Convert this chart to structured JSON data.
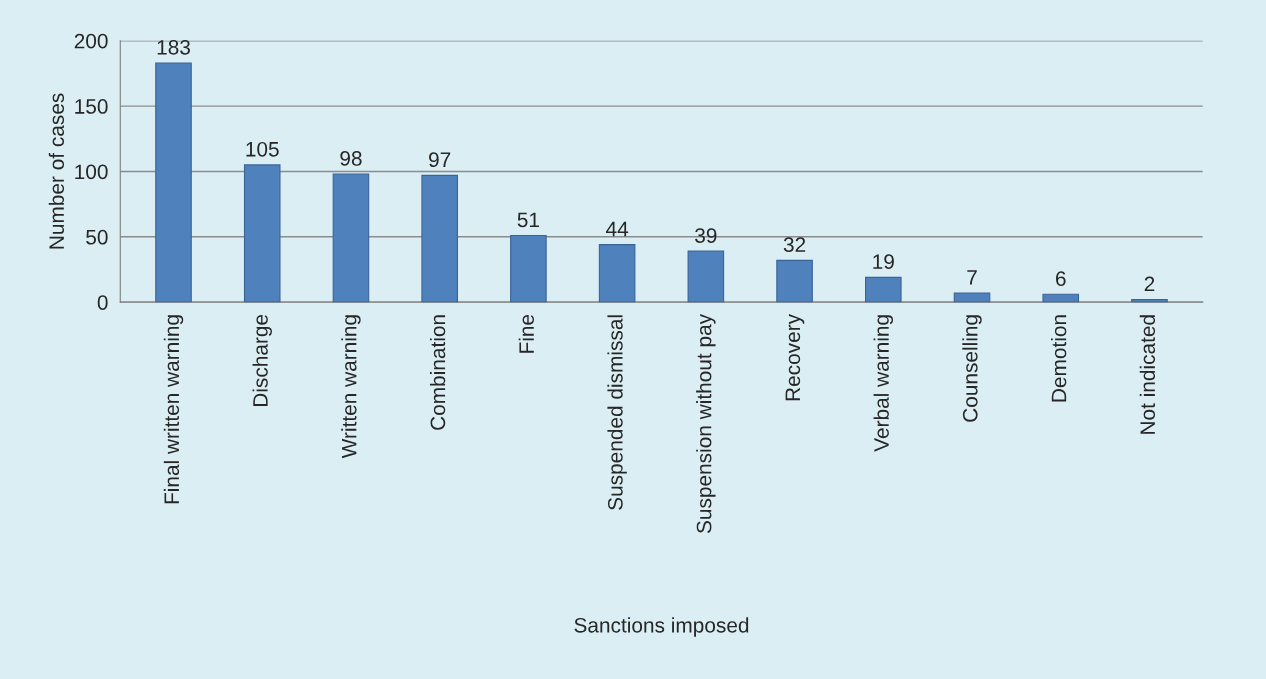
{
  "chart_data": {
    "type": "bar",
    "xlabel": "Sanctions imposed",
    "ylabel": "Number of cases",
    "categories": [
      "Final written warning",
      "Discharge",
      "Written warning",
      "Combination",
      "Fine",
      "Suspended dismissal",
      "Suspension without pay",
      "Recovery",
      "Verbal warning",
      "Counselling",
      "Demotion",
      "Not indicated"
    ],
    "values": [
      183,
      105,
      98,
      97,
      51,
      44,
      39,
      32,
      19,
      7,
      6,
      2
    ],
    "color": "#4f81bd",
    "ylim": [
      0,
      200
    ],
    "yticks": [
      0,
      50,
      100,
      150,
      200
    ],
    "grid": "y",
    "data_labels": true,
    "legend": false
  }
}
